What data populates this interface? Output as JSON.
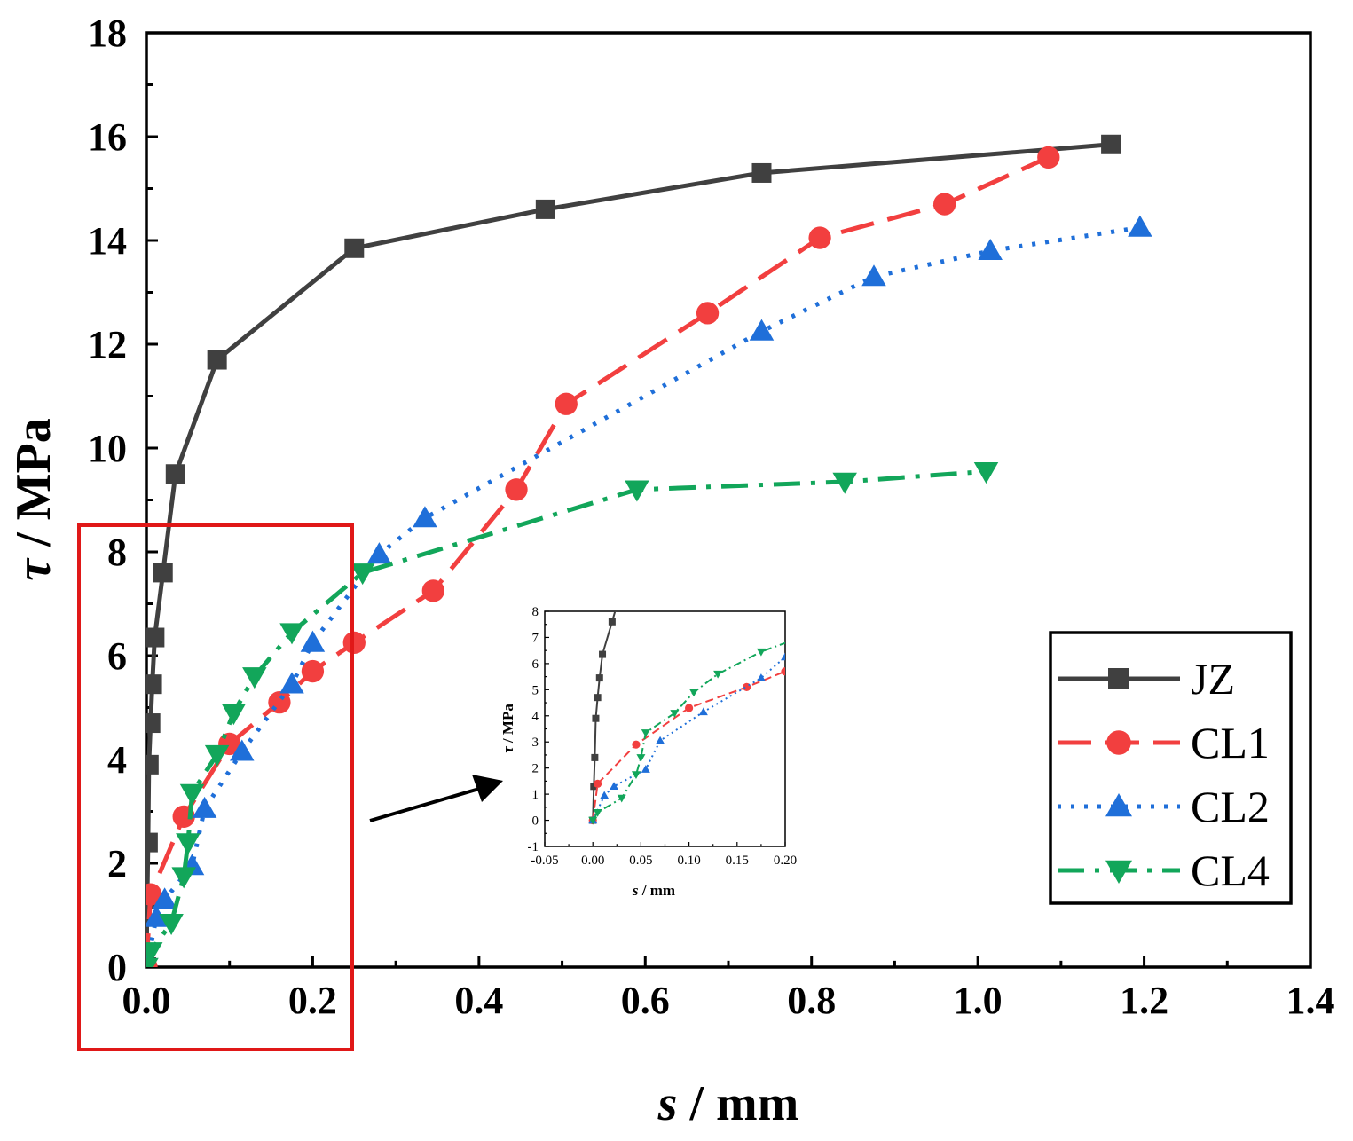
{
  "chart_data": [
    {
      "type": "line",
      "xlabel_italic": "s",
      "xlabel_rest": " / mm",
      "ylabel_italic": "τ",
      "ylabel_rest": " / MPa",
      "xlim": [
        0,
        1.4
      ],
      "ylim": [
        0,
        18
      ],
      "xticks": [
        "0.0",
        "0.2",
        "0.4",
        "0.6",
        "0.8",
        "1.0",
        "1.2",
        "1.4"
      ],
      "yticks": [
        "0",
        "2",
        "4",
        "6",
        "8",
        "10",
        "12",
        "14",
        "16",
        "18"
      ],
      "legend_position": "bottom-right",
      "grid": false,
      "series": [
        {
          "name": "JZ",
          "color": "#404040",
          "marker": "square",
          "dash": "solid",
          "x": [
            0,
            0.001,
            0.002,
            0.003,
            0.005,
            0.007,
            0.01,
            0.02,
            0.035,
            0.085,
            0.25,
            0.48,
            0.74,
            1.16
          ],
          "y": [
            0,
            1.3,
            2.4,
            3.9,
            4.7,
            5.45,
            6.35,
            7.6,
            9.5,
            11.7,
            13.85,
            14.6,
            15.3,
            15.85
          ]
        },
        {
          "name": "CL1",
          "color": "#f23f3f",
          "marker": "circle",
          "dash": "longdash",
          "x": [
            0,
            0.005,
            0.045,
            0.1,
            0.16,
            0.2,
            0.25,
            0.345,
            0.445,
            0.505,
            0.675,
            0.81,
            0.96,
            1.085
          ],
          "y": [
            0,
            1.4,
            2.9,
            4.3,
            5.1,
            5.7,
            6.25,
            7.25,
            9.2,
            10.85,
            12.6,
            14.05,
            14.7,
            15.6
          ]
        },
        {
          "name": "CL2",
          "color": "#1f6fd9",
          "marker": "triangle-up",
          "dash": "dot",
          "x": [
            0,
            0.012,
            0.022,
            0.055,
            0.07,
            0.115,
            0.175,
            0.2,
            0.28,
            0.335,
            0.74,
            0.875,
            1.015,
            1.195
          ],
          "y": [
            0,
            0.95,
            1.3,
            1.95,
            3.05,
            4.15,
            5.45,
            6.25,
            7.95,
            8.65,
            12.25,
            13.3,
            13.8,
            14.25
          ]
        },
        {
          "name": "CL4",
          "color": "#12a65a",
          "marker": "triangle-down",
          "dash": "dashdot",
          "x": [
            0,
            0.005,
            0.03,
            0.045,
            0.05,
            0.055,
            0.085,
            0.105,
            0.13,
            0.175,
            0.26,
            0.59,
            0.84,
            1.01
          ],
          "y": [
            0,
            0.3,
            0.85,
            1.75,
            2.4,
            3.35,
            4.1,
            4.9,
            5.6,
            6.45,
            7.6,
            9.2,
            9.35,
            9.55
          ]
        }
      ]
    },
    {
      "type": "line",
      "role": "inset",
      "xlabel_italic": "s",
      "xlabel_rest": " / mm",
      "ylabel_italic": "τ",
      "ylabel_rest": " / MPa",
      "xlim": [
        -0.05,
        0.2
      ],
      "ylim": [
        -1,
        8
      ],
      "xticks": [
        "-0.05",
        "0.00",
        "0.05",
        "0.10",
        "0.15",
        "0.20"
      ],
      "yticks": [
        "-1",
        "0",
        "1",
        "2",
        "3",
        "4",
        "5",
        "6",
        "7",
        "8"
      ]
    }
  ]
}
